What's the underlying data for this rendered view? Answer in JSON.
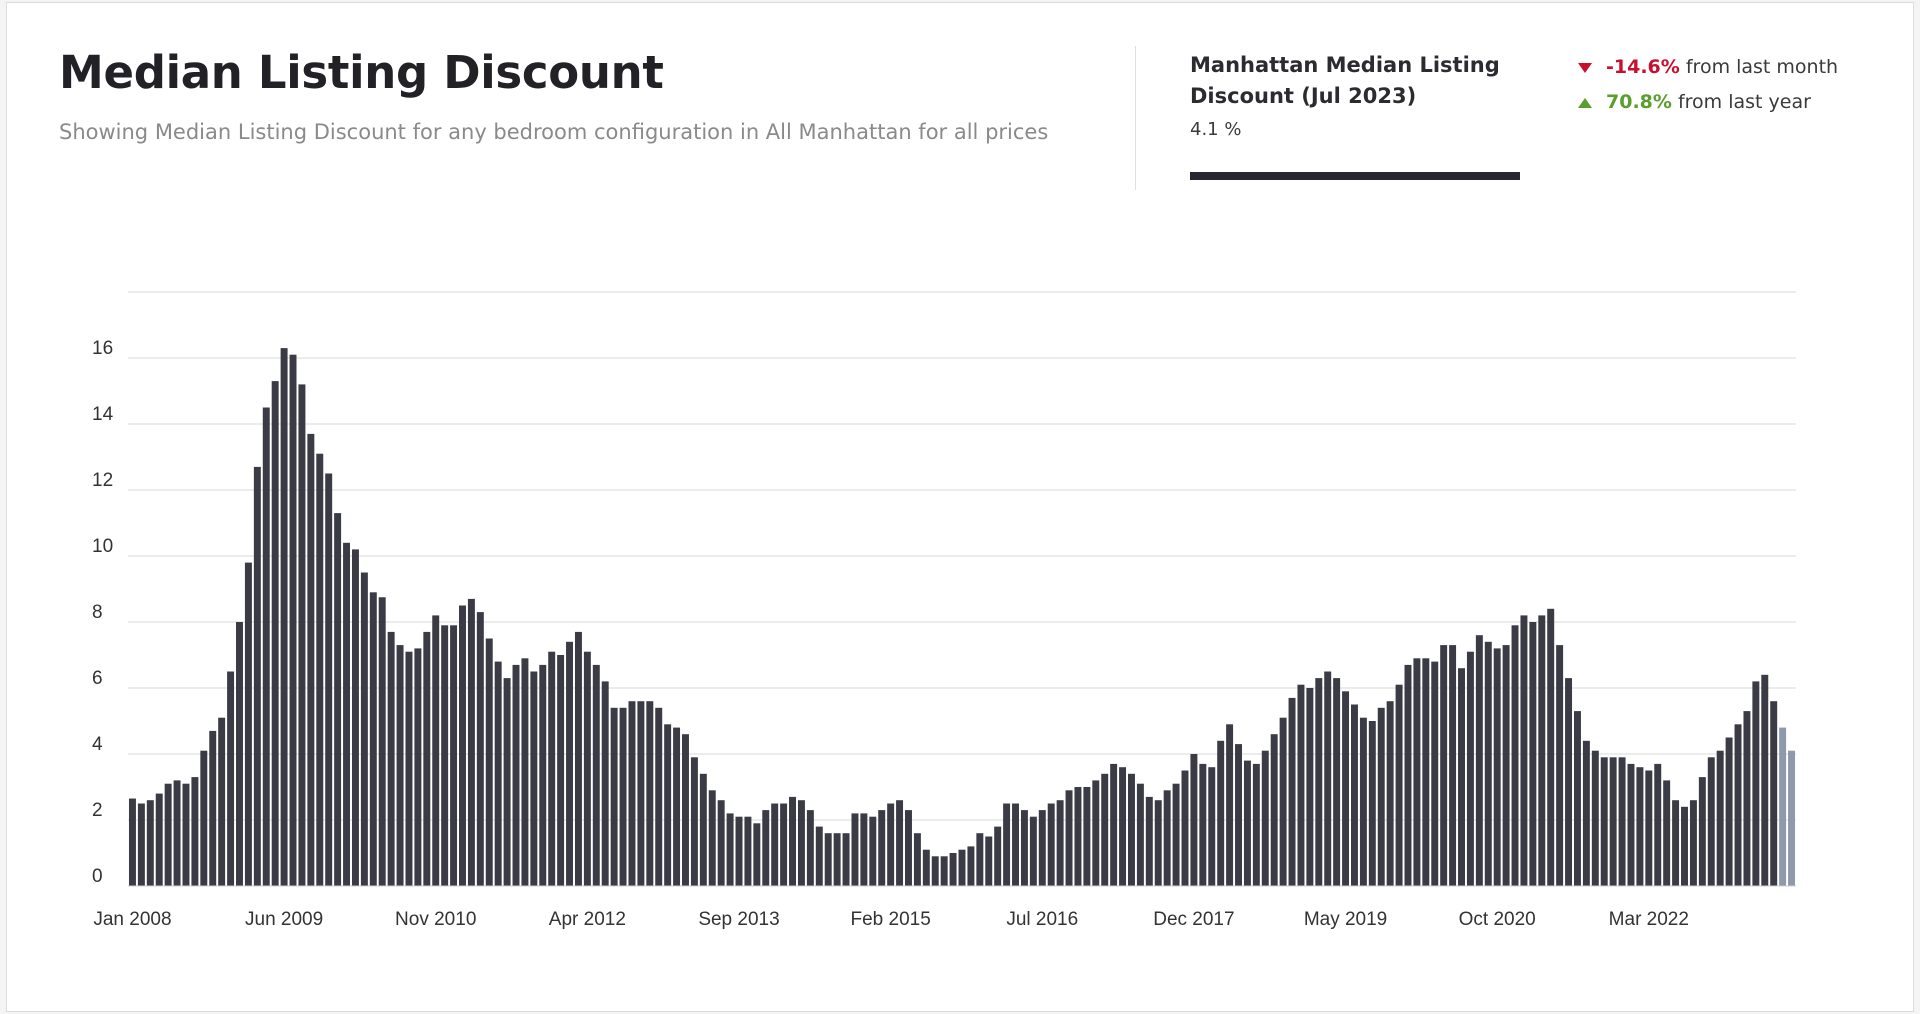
{
  "header": {
    "title": "Median Listing Discount",
    "subtitle": "Showing Median Listing Discount for any bedroom configuration in All Manhattan for all prices"
  },
  "summary": {
    "title": "Manhattan Median Listing Discount  (Jul 2023)",
    "value": "4.1 %",
    "month_change": {
      "value": "-14.6%",
      "text": "from last month",
      "direction": "down",
      "color": "#c8102e"
    },
    "year_change": {
      "value": "70.8%",
      "text": "from last year",
      "direction": "up",
      "color": "#5a9e2e"
    }
  },
  "chart_data": {
    "type": "bar",
    "title": "",
    "xlabel": "",
    "ylabel": "",
    "ylim": [
      0,
      18
    ],
    "yticks": [
      0,
      2,
      4,
      6,
      8,
      10,
      12,
      14,
      16
    ],
    "grid": true,
    "bar_color": "#3b3b45",
    "highlight_color": "#8e9aab",
    "x_start": "Jan 2008",
    "x_end": "Jul 2023",
    "xtick_labels": [
      "Jan 2008",
      "Jun 2009",
      "Nov 2010",
      "Apr 2012",
      "Sep 2013",
      "Feb 2015",
      "Jul 2016",
      "Dec 2017",
      "May 2019",
      "Oct 2020",
      "Mar 2022"
    ],
    "highlight_last": 2,
    "values": [
      2.65,
      2.5,
      2.6,
      2.8,
      3.1,
      3.2,
      3.1,
      3.3,
      4.1,
      4.7,
      5.1,
      6.5,
      8.0,
      9.8,
      12.7,
      14.5,
      15.3,
      16.3,
      16.1,
      15.2,
      13.7,
      13.1,
      12.5,
      11.3,
      10.4,
      10.2,
      9.5,
      8.9,
      8.75,
      7.7,
      7.3,
      7.1,
      7.2,
      7.7,
      8.2,
      7.9,
      7.9,
      8.5,
      8.7,
      8.3,
      7.5,
      6.8,
      6.3,
      6.7,
      6.9,
      6.5,
      6.7,
      7.1,
      7.0,
      7.4,
      7.7,
      7.1,
      6.7,
      6.2,
      5.4,
      5.4,
      5.6,
      5.6,
      5.6,
      5.4,
      4.9,
      4.8,
      4.6,
      3.9,
      3.4,
      2.9,
      2.6,
      2.2,
      2.1,
      2.1,
      1.9,
      2.3,
      2.5,
      2.5,
      2.7,
      2.6,
      2.3,
      1.8,
      1.6,
      1.6,
      1.6,
      2.2,
      2.2,
      2.1,
      2.3,
      2.5,
      2.6,
      2.3,
      1.6,
      1.1,
      0.9,
      0.9,
      1.0,
      1.1,
      1.2,
      1.6,
      1.5,
      1.8,
      2.5,
      2.5,
      2.3,
      2.1,
      2.3,
      2.5,
      2.6,
      2.9,
      3.0,
      3.0,
      3.2,
      3.4,
      3.7,
      3.6,
      3.4,
      3.1,
      2.7,
      2.6,
      2.9,
      3.1,
      3.5,
      4.0,
      3.7,
      3.6,
      4.4,
      4.9,
      4.3,
      3.8,
      3.7,
      4.1,
      4.6,
      5.1,
      5.7,
      6.1,
      6.0,
      6.3,
      6.5,
      6.3,
      5.9,
      5.5,
      5.1,
      5.0,
      5.4,
      5.6,
      6.1,
      6.7,
      6.9,
      6.9,
      6.8,
      7.3,
      7.3,
      6.6,
      7.1,
      7.6,
      7.4,
      7.2,
      7.3,
      7.9,
      8.2,
      8.0,
      8.2,
      8.4,
      7.3,
      6.3,
      5.3,
      4.4,
      4.1,
      3.9,
      3.9,
      3.9,
      3.7,
      3.6,
      3.5,
      3.7,
      3.2,
      2.6,
      2.4,
      2.6,
      3.3,
      3.9,
      4.1,
      4.5,
      4.9,
      5.3,
      6.2,
      6.4,
      5.6,
      4.8,
      4.1
    ]
  }
}
